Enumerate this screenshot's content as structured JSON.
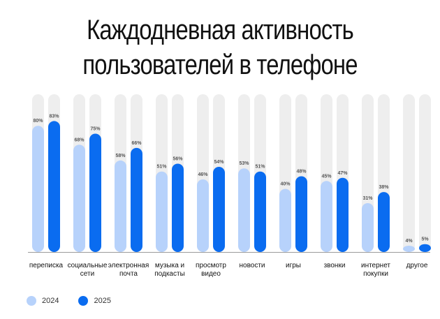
{
  "chart_data": {
    "type": "bar",
    "title_lines": [
      "Каждодневная активность",
      "пользователей в телефоне"
    ],
    "categories": [
      [
        "переписка"
      ],
      [
        "социальные",
        "сети"
      ],
      [
        "электронная",
        "почта"
      ],
      [
        "музыка и",
        "подкасты"
      ],
      [
        "просмотр",
        "видео"
      ],
      [
        "новости"
      ],
      [
        "игры"
      ],
      [
        "звонки"
      ],
      [
        "интернет",
        "покупки"
      ],
      [
        "другое"
      ]
    ],
    "series": [
      {
        "name": "2024",
        "color": "#b7d2fb",
        "values": [
          80,
          68,
          58,
          51,
          46,
          53,
          40,
          45,
          31,
          4
        ],
        "labels": [
          "80%",
          "68%",
          "58%",
          "51%",
          "46%",
          "53%",
          "40%",
          "45%",
          "31%",
          "4%"
        ]
      },
      {
        "name": "2025",
        "color": "#0a6cf0",
        "values": [
          83,
          75,
          66,
          56,
          54,
          51,
          48,
          47,
          38,
          5
        ],
        "labels": [
          "83%",
          "75%",
          "66%",
          "56%",
          "54%",
          "51%",
          "48%",
          "47%",
          "38%",
          "5%"
        ]
      }
    ],
    "ylim": [
      0,
      100
    ],
    "track_color": "#eeeeee",
    "xlabel": "",
    "ylabel": ""
  }
}
